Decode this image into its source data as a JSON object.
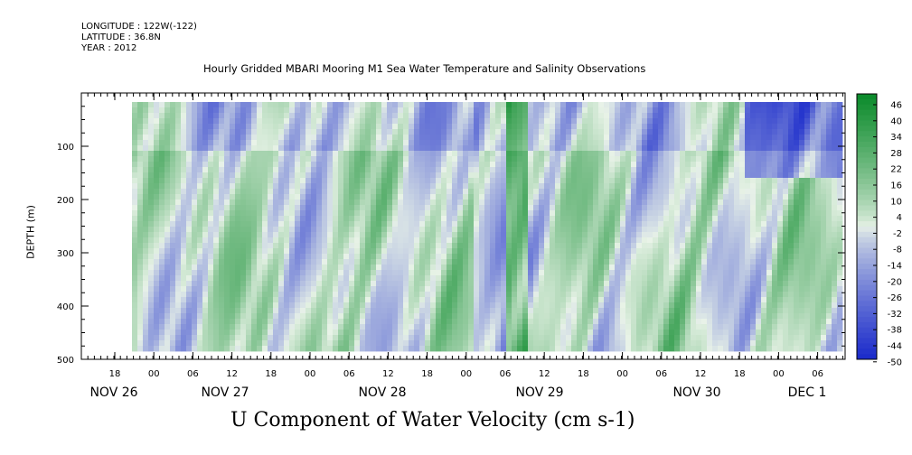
{
  "header": {
    "longitude": "LONGITUDE : 122W(-122)",
    "latitude": "LATITUDE : 36.8N",
    "year": "YEAR : 2012"
  },
  "chart_data": {
    "type": "heatmap",
    "title": "Hourly Gridded MBARI Mooring M1 Sea Water Temperature and Salinity Observations",
    "xlabel": "U Component of Water Velocity (cm s-1)",
    "ylabel": "DEPTH (m)",
    "y_range": [
      500,
      0
    ],
    "y_ticks": [
      100,
      200,
      300,
      400,
      500
    ],
    "x_hour_ticks": [
      "18",
      "00",
      "06",
      "12",
      "18",
      "00",
      "06",
      "12",
      "18",
      "00",
      "06",
      "12",
      "18",
      "00",
      "06",
      "12",
      "18",
      "00",
      "06"
    ],
    "x_day_labels": [
      "NOV 26",
      "NOV 27",
      "NOV 28",
      "NOV 29",
      "NOV 30",
      "DEC  1"
    ],
    "colorbar_labels": [
      "46",
      "40",
      "34",
      "28",
      "22",
      "16",
      "10",
      "4",
      "-2",
      "-8",
      "-14",
      "-20",
      "-26",
      "-32",
      "-38",
      "-44",
      "-50"
    ],
    "color_scale": {
      "min": -50,
      "max": 50,
      "negative": "#1a2acb",
      "neutral": "#e9f3e8",
      "positive": "#0a8a2a"
    }
  }
}
